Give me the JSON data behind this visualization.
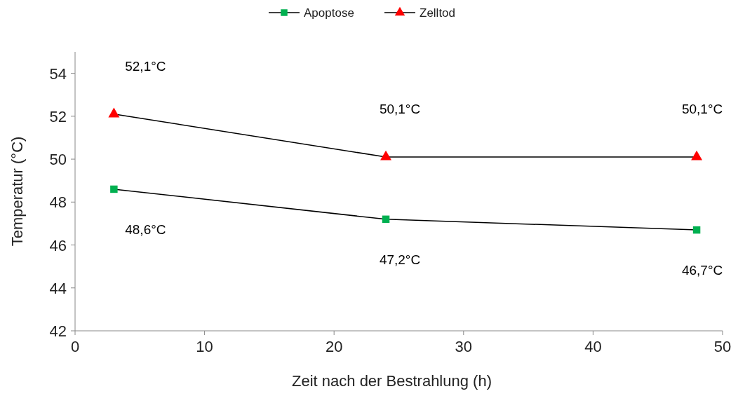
{
  "chart_data": {
    "type": "line",
    "xlabel": "Zeit nach der Bestrahlung (h)",
    "ylabel": "Temperatur (°C)",
    "x": [
      3,
      24,
      48
    ],
    "series": [
      {
        "name": "Apoptose",
        "color": "#00b050",
        "marker": "square",
        "values": [
          48.6,
          47.2,
          46.7
        ],
        "value_labels": [
          "48,6°C",
          "47,2°C",
          "46,7°C"
        ]
      },
      {
        "name": "Zelltod",
        "color": "#ff0000",
        "marker": "triangle",
        "values": [
          52.1,
          50.1,
          50.1
        ],
        "value_labels": [
          "52,1°C",
          "50,1°C",
          "50,1°C"
        ]
      }
    ],
    "xlim": [
      0,
      50
    ],
    "xticks": [
      0,
      10,
      20,
      30,
      40,
      50
    ],
    "ylim": [
      42,
      55
    ],
    "yticks": [
      42,
      44,
      46,
      48,
      50,
      52,
      54
    ],
    "grid": false,
    "legend": "top",
    "line_style": "solid"
  }
}
